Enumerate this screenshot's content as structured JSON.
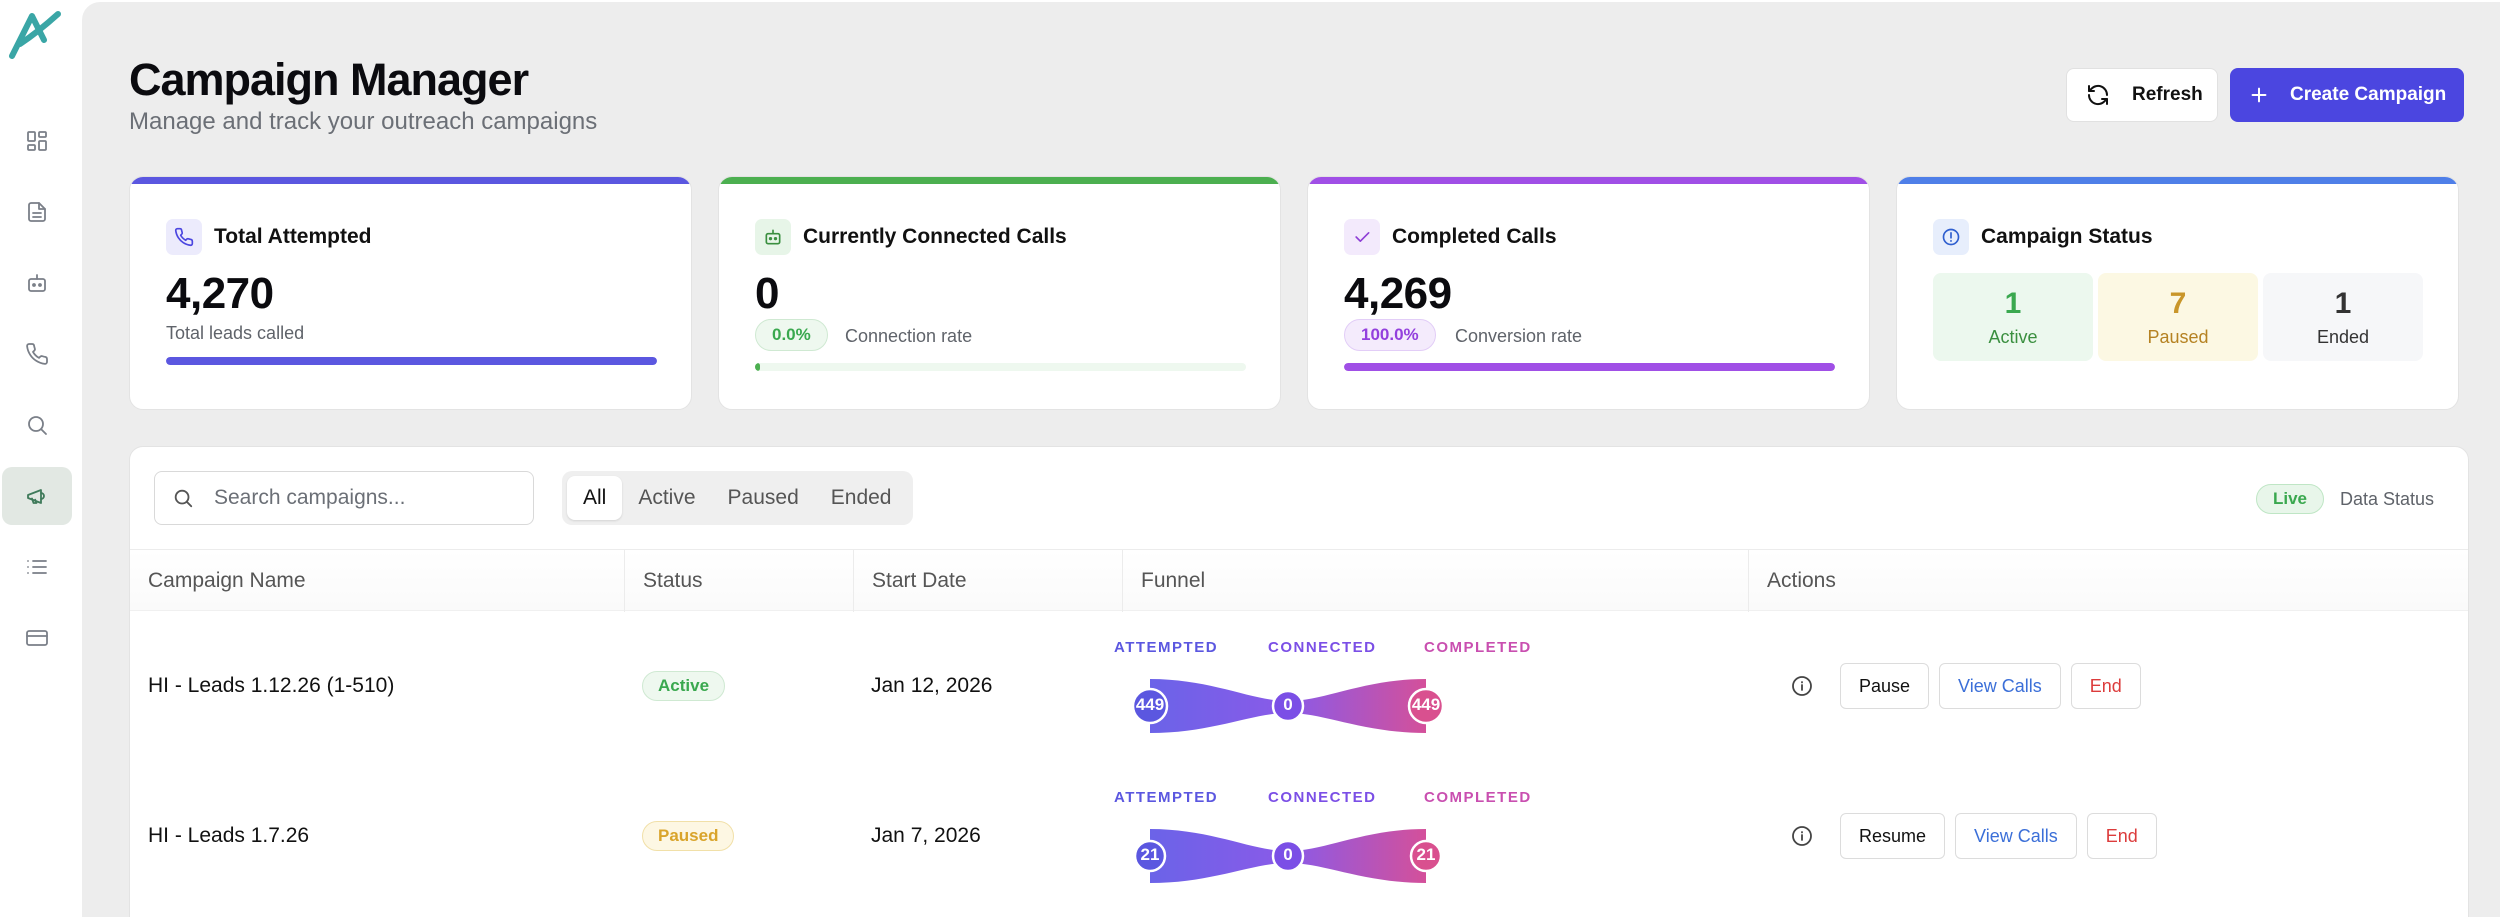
{
  "header": {
    "title": "Campaign Manager",
    "subtitle": "Manage and track your outreach campaigns",
    "refresh_label": "Refresh",
    "create_label": "Create Campaign"
  },
  "stats": {
    "total_attempted": {
      "title": "Total Attempted",
      "value": "4,270",
      "sub": "Total leads called",
      "progress": 1.0,
      "color": "#5b57e0"
    },
    "connected": {
      "title": "Currently Connected Calls",
      "value": "0",
      "rate": "0.0%",
      "rate_label": "Connection rate",
      "progress": 0.0,
      "color": "#4caf50"
    },
    "completed": {
      "title": "Completed Calls",
      "value": "4,269",
      "rate": "100.0%",
      "rate_label": "Conversion rate",
      "progress": 1.0,
      "color": "#a04fe6"
    },
    "campaign_status": {
      "title": "Campaign Status",
      "active": {
        "count": "1",
        "label": "Active"
      },
      "paused": {
        "count": "7",
        "label": "Paused"
      },
      "ended": {
        "count": "1",
        "label": "Ended"
      }
    }
  },
  "table": {
    "search_placeholder": "Search campaigns...",
    "filters": [
      "All",
      "Active",
      "Paused",
      "Ended"
    ],
    "active_filter": "All",
    "live_label": "Live",
    "data_status_label": "Data Status",
    "columns": [
      "Campaign Name",
      "Status",
      "Start Date",
      "Funnel",
      "Actions"
    ],
    "funnel_labels": [
      "ATTEMPTED",
      "CONNECTED",
      "COMPLETED"
    ],
    "rows": [
      {
        "name": "HI - Leads 1.12.26 (1-510)",
        "status": "Active",
        "start_date": "Jan 12, 2026",
        "attempted": "449",
        "connected": "0",
        "completed": "449",
        "primary_action": "Pause",
        "view_label": "View Calls",
        "end_label": "End"
      },
      {
        "name": "HI - Leads 1.7.26",
        "status": "Paused",
        "start_date": "Jan 7, 2026",
        "attempted": "21",
        "connected": "0",
        "completed": "21",
        "primary_action": "Resume",
        "view_label": "View Calls",
        "end_label": "End"
      }
    ]
  },
  "icons": {
    "nav": [
      "dashboard-icon",
      "document-icon",
      "bot-icon",
      "phone-icon",
      "search-icon",
      "megaphone-icon",
      "list-icon",
      "credit-card-icon"
    ],
    "active_nav": "megaphone-icon"
  }
}
